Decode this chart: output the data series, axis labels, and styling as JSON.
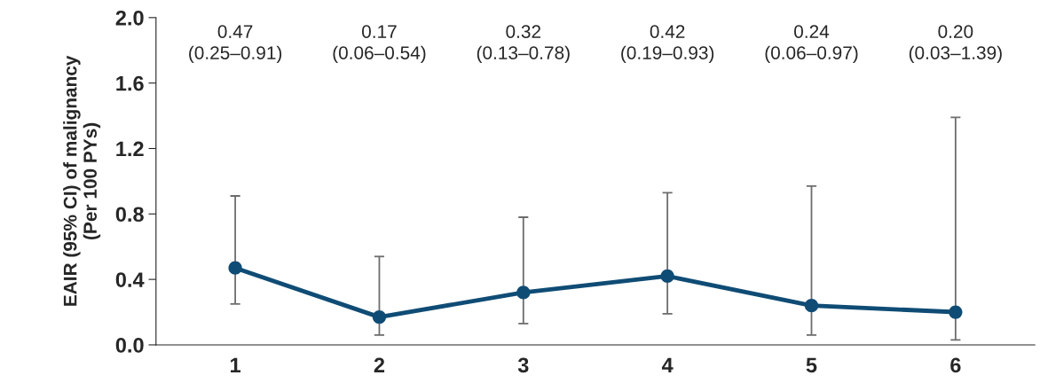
{
  "chart_data": {
    "type": "line",
    "ylabel": "EAIR (95% CI) of malignancy\n(Per 100 PYs)",
    "categories": [
      "1",
      "2",
      "3",
      "4",
      "5",
      "6"
    ],
    "series": [
      {
        "color": "#0f4c75",
        "values": [
          0.47,
          0.17,
          0.32,
          0.42,
          0.24,
          0.2
        ],
        "errors": [
          [
            0.25,
            0.91
          ],
          [
            0.06,
            0.54
          ],
          [
            0.13,
            0.78
          ],
          [
            0.19,
            0.93
          ],
          [
            0.06,
            0.97
          ],
          [
            0.03,
            1.39
          ]
        ]
      }
    ],
    "annotations": [
      "0.47\n(0.25–0.91)",
      "0.17\n(0.06–0.54)",
      "0.32\n(0.13–0.78)",
      "0.42\n(0.19–0.93)",
      "0.24\n(0.06–0.97)",
      "0.20\n(0.03–1.39)"
    ],
    "ylim": [
      0,
      2.0
    ],
    "yticks": [
      {
        "value": 0,
        "label": "0.0"
      },
      {
        "value": 0.4,
        "label": "0.4"
      },
      {
        "value": 0.8,
        "label": "0.8"
      },
      {
        "value": 1.2,
        "label": "1.2"
      },
      {
        "value": 1.6,
        "label": "1.6"
      },
      {
        "value": 2.0,
        "label": "2.0"
      }
    ],
    "marker": "circle",
    "line_style": "solid",
    "grid": false
  }
}
